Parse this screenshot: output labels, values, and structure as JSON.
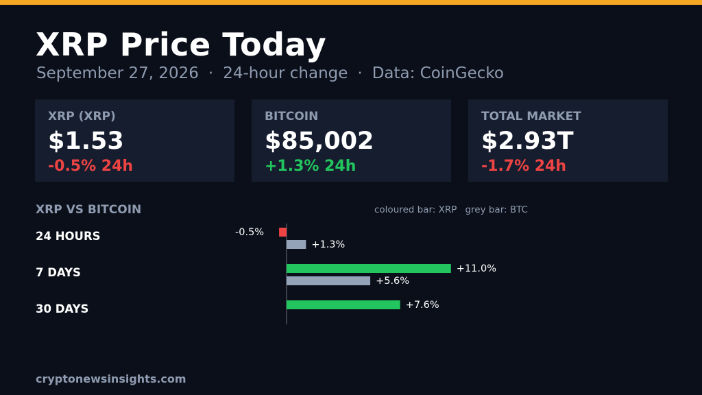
{
  "header": {
    "title": "XRP Price Today",
    "subtitle_date": "September 27, 2026",
    "subtitle_change": "24-hour change",
    "subtitle_source": "Data: CoinGecko",
    "separator": "·"
  },
  "cards": [
    {
      "label": "XRP (XRP)",
      "value": "$1.53",
      "change": "-0.5% 24h",
      "direction": "down"
    },
    {
      "label": "BITCOIN",
      "value": "$85,002",
      "change": "+1.3% 24h",
      "direction": "up"
    },
    {
      "label": "TOTAL MARKET",
      "value": "$2.93T",
      "change": "-1.7% 24h",
      "direction": "down"
    }
  ],
  "section": {
    "title": "XRP VS BITCOIN",
    "legend_xrp": "coloured bar: XRP",
    "legend_btc": "grey bar: BTC"
  },
  "chart_data": {
    "type": "bar",
    "orientation": "horizontal",
    "categories": [
      "24 HOURS",
      "7 DAYS",
      "30 DAYS"
    ],
    "series": [
      {
        "name": "XRP",
        "values": [
          -0.5,
          11.0,
          7.6
        ],
        "labels": [
          "-0.5%",
          "+11.0%",
          "+7.6%"
        ]
      },
      {
        "name": "BTC",
        "values": [
          1.3,
          5.6,
          null
        ],
        "labels": [
          "+1.3%",
          "+5.6%",
          ""
        ]
      }
    ],
    "xlim": [
      -0.5,
      11.0
    ],
    "grid": false,
    "legend": "top-right"
  },
  "footer": {
    "site": "cryptonewsinsights.com"
  },
  "colors": {
    "background": "#0b0f19",
    "card_bg": "#161d2e",
    "accent": "#f5a623",
    "up": "#22c55e",
    "down": "#ef4444",
    "btc_bar": "#94a3b8",
    "muted": "#8e9bb0",
    "text": "#ffffff",
    "axis": "#6b7280"
  }
}
